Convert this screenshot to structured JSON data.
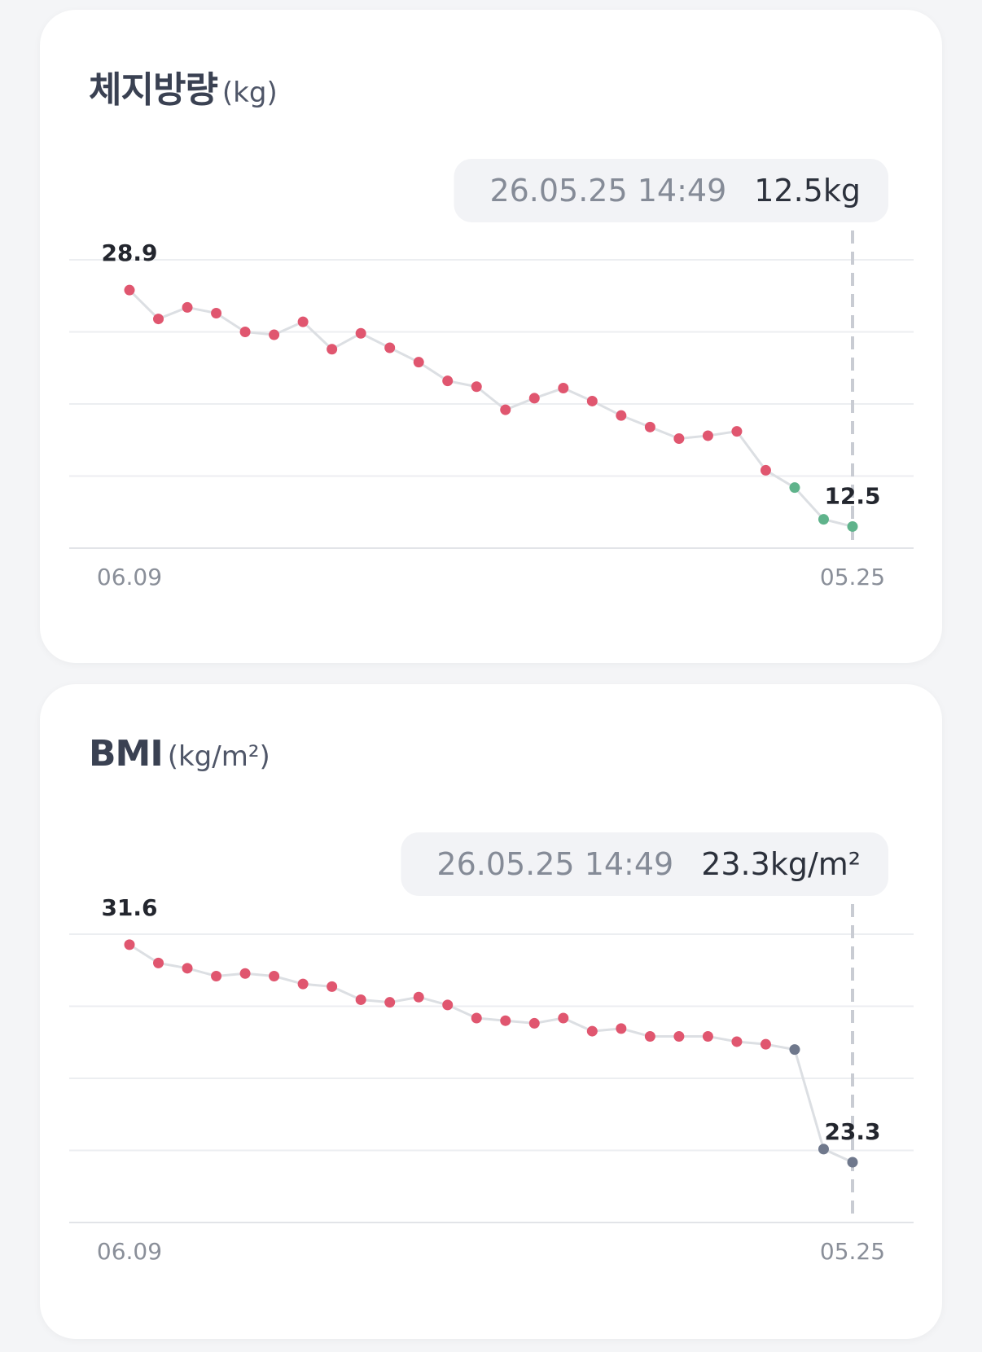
{
  "cards": [
    {
      "title": "체지방량",
      "unit": "(kg)",
      "tooltip": {
        "datetime": "26.05.25 14:49",
        "value": "12.5kg"
      },
      "chart_data": {
        "type": "line",
        "ylim": [
          11,
          31
        ],
        "x_tick_labels": [
          "06.09",
          "05.25"
        ],
        "annotations": [
          {
            "index": 0,
            "label": "28.9"
          },
          {
            "index": 25,
            "label": "12.5"
          }
        ],
        "values": [
          28.9,
          26.9,
          27.7,
          27.3,
          26.0,
          25.8,
          26.7,
          24.8,
          25.9,
          24.9,
          23.9,
          22.6,
          22.2,
          20.6,
          21.4,
          22.1,
          21.2,
          20.2,
          19.4,
          18.6,
          18.8,
          19.1,
          16.4,
          15.2,
          13.0,
          12.5
        ],
        "point_colors": [
          "#e0566f",
          "#e0566f",
          "#e0566f",
          "#e0566f",
          "#e0566f",
          "#e0566f",
          "#e0566f",
          "#e0566f",
          "#e0566f",
          "#e0566f",
          "#e0566f",
          "#e0566f",
          "#e0566f",
          "#e0566f",
          "#e0566f",
          "#e0566f",
          "#e0566f",
          "#e0566f",
          "#e0566f",
          "#e0566f",
          "#e0566f",
          "#e0566f",
          "#e0566f",
          "#5fb38b",
          "#5fb38b",
          "#5fb38b"
        ]
      }
    },
    {
      "title": "BMI",
      "unit": "(kg/m²)",
      "tooltip": {
        "datetime": "26.05.25 14:49",
        "value": "23.3kg/m²"
      },
      "chart_data": {
        "type": "line",
        "ylim": [
          21,
          32
        ],
        "x_tick_labels": [
          "06.09",
          "05.25"
        ],
        "annotations": [
          {
            "index": 0,
            "label": "31.6"
          },
          {
            "index": 25,
            "label": "23.3"
          }
        ],
        "values": [
          31.6,
          30.9,
          30.7,
          30.4,
          30.5,
          30.4,
          30.1,
          30.0,
          29.5,
          29.4,
          29.6,
          29.3,
          28.8,
          28.7,
          28.6,
          28.8,
          28.3,
          28.4,
          28.1,
          28.1,
          28.1,
          27.9,
          27.8,
          27.6,
          23.8,
          23.3
        ],
        "point_colors": [
          "#e0566f",
          "#e0566f",
          "#e0566f",
          "#e0566f",
          "#e0566f",
          "#e0566f",
          "#e0566f",
          "#e0566f",
          "#e0566f",
          "#e0566f",
          "#e0566f",
          "#e0566f",
          "#e0566f",
          "#e0566f",
          "#e0566f",
          "#e0566f",
          "#e0566f",
          "#e0566f",
          "#e0566f",
          "#e0566f",
          "#e0566f",
          "#e0566f",
          "#e0566f",
          "#6f788c",
          "#6f788c",
          "#6f788c"
        ]
      }
    }
  ]
}
